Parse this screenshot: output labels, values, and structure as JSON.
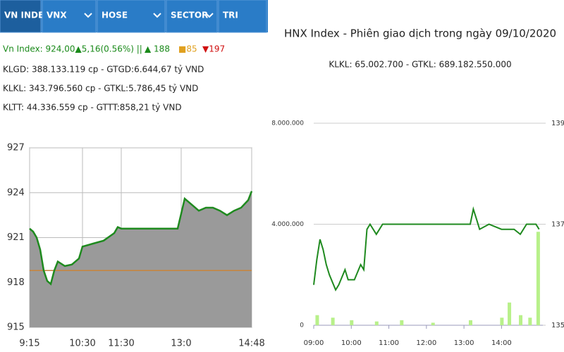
{
  "tabs": [
    "VN INDEX",
    "VNX",
    "HOSE",
    "SECTOR",
    "TRI"
  ],
  "info": {
    "index_line": "Vn Index: 924,00▲5,16(0.56%) ||",
    "up": "▲ 188",
    "flat": "■85",
    "down": "▼197",
    "lines": [
      "KLGD: 388.133.119 cp - GTGD:6.644,67 tỷ VND",
      "KLKL: 343.796.560 cp - GTKL:5.786,45 tỷ VND",
      "KLTT: 44.336.559 cp - GTTT:858,21 tỷ VND"
    ]
  },
  "chart_data": [
    {
      "type": "area",
      "series": [
        {
          "color": "#1f8a1f",
          "x": [
            0,
            1,
            2,
            3,
            4,
            5,
            6,
            7,
            8,
            10,
            12,
            14,
            15,
            18,
            21,
            24,
            25,
            26,
            32,
            42,
            43,
            44,
            46,
            48,
            50,
            52,
            54,
            56,
            58,
            60,
            62,
            63
          ],
          "values": [
            921.6,
            921.4,
            921.0,
            920.2,
            918.8,
            918.1,
            917.9,
            918.8,
            919.4,
            919.1,
            919.2,
            919.6,
            920.4,
            920.6,
            920.8,
            921.3,
            921.7,
            921.6,
            921.6,
            921.6,
            922.6,
            923.6,
            923.2,
            922.8,
            923.0,
            923.0,
            922.8,
            922.5,
            922.8,
            923.0,
            923.5,
            924.1
          ]
        }
      ],
      "fill": "#9a9a9a",
      "reference_line": 918.8,
      "reference_color": "#c8843a",
      "xlim": [
        0,
        63
      ],
      "xticks": [
        {
          "value": 0,
          "label": "9:15"
        },
        {
          "value": 15,
          "label": "10:30"
        },
        {
          "value": 26,
          "label": "11:30"
        },
        {
          "value": 43,
          "label": "13:0"
        },
        {
          "value": 63,
          "label": "14:48"
        }
      ],
      "ylim": [
        915,
        927
      ],
      "yticks": [
        915,
        918,
        921,
        924,
        927
      ],
      "grid": true
    },
    {
      "type": "line",
      "title": "HNX Index - Phiên giao dịch trong ngày 09/10/2020",
      "subtitle": "KLKL: 65.002.700 - GTKL: 689.182.550.000",
      "series": [
        {
          "color": "#1f8a1f",
          "axis": "y2",
          "x": [
            0,
            5,
            10,
            15,
            20,
            25,
            35,
            40,
            50,
            55,
            65,
            75,
            80,
            85,
            90,
            100,
            110,
            130,
            150,
            170,
            200,
            230,
            250,
            255,
            260,
            265,
            280,
            300,
            320,
            330,
            340,
            355,
            360
          ],
          "values": [
            135.8,
            136.3,
            136.7,
            136.5,
            136.2,
            136.0,
            135.7,
            135.8,
            136.1,
            135.9,
            135.9,
            136.2,
            136.1,
            136.9,
            137.0,
            136.8,
            137.0,
            137.0,
            137.0,
            137.0,
            137.0,
            137.0,
            137.0,
            137.3,
            137.1,
            136.9,
            137.0,
            136.9,
            136.9,
            136.8,
            137.0,
            137.0,
            136.9
          ]
        },
        {
          "color": "#b8f08a",
          "type": "bar",
          "x": [
            5,
            30,
            60,
            100,
            140,
            190,
            250,
            300,
            312,
            330,
            345,
            358
          ],
          "values": [
            400000,
            300000,
            200000,
            150000,
            200000,
            100000,
            200000,
            300000,
            900000,
            400000,
            300000,
            3700000
          ]
        }
      ],
      "xlim": [
        0,
        366
      ],
      "xticks": [
        {
          "value": 0,
          "label": "09:00"
        },
        {
          "value": 60,
          "label": "10:00"
        },
        {
          "value": 120,
          "label": "11:00"
        },
        {
          "value": 180,
          "label": "12:00"
        },
        {
          "value": 240,
          "label": "13:00"
        },
        {
          "value": 300,
          "label": "14:00"
        }
      ],
      "ylim": [
        0,
        8000000
      ],
      "yticks": [
        {
          "value": 0,
          "label": "0"
        },
        {
          "value": 4000000,
          "label": "4.000.000"
        },
        {
          "value": 8000000,
          "label": "8.000.000"
        }
      ],
      "y2lim": [
        135,
        139
      ],
      "y2ticks": [
        135,
        137,
        139
      ],
      "grid": true
    }
  ]
}
